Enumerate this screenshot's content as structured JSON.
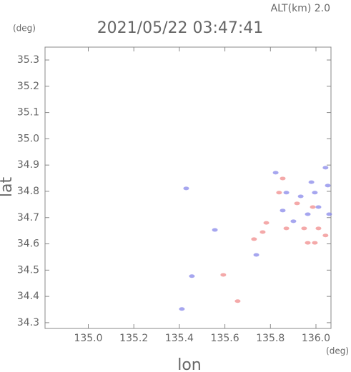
{
  "chart_data": {
    "type": "scatter",
    "title": "2021/05/22 03:47:41",
    "subtitle": "ALT(km) 2.0",
    "y_unit": "(deg)",
    "x_unit": "(deg)",
    "x_label": "lon",
    "y_label": "lat",
    "xlim": [
      134.81,
      136.066
    ],
    "ylim": [
      34.278,
      35.349
    ],
    "xticks": [
      {
        "value": 135.0,
        "label": "135.0"
      },
      135.2,
      135.4,
      135.6,
      135.8,
      {
        "value": 136.0,
        "label": "136.0"
      }
    ],
    "yticks": [
      34.3,
      34.4,
      34.5,
      34.6,
      34.7,
      34.8,
      34.9,
      {
        "value": 35.0,
        "label": "35.0"
      },
      35.1,
      35.2,
      35.3
    ],
    "series": [
      {
        "color": "#8080e8",
        "x": [
          135.43,
          135.823,
          135.87,
          135.933,
          135.995,
          136.042,
          136.052,
          136.011,
          135.964,
          135.901,
          135.854,
          135.738,
          135.455,
          135.411,
          135.556,
          136.058,
          135.98
        ],
        "y": [
          34.811,
          34.871,
          34.795,
          34.781,
          34.795,
          34.89,
          34.822,
          34.74,
          34.713,
          34.686,
          34.727,
          34.558,
          34.477,
          34.352,
          34.653,
          34.713,
          34.835
        ]
      },
      {
        "color": "#f08484",
        "x": [
          135.854,
          135.838,
          135.917,
          135.986,
          136.011,
          135.948,
          135.87,
          135.782,
          135.766,
          135.728,
          135.593,
          135.656,
          135.995,
          136.042,
          135.964
        ],
        "y": [
          34.849,
          34.795,
          34.754,
          34.74,
          34.659,
          34.659,
          34.659,
          34.68,
          34.645,
          34.618,
          34.482,
          34.382,
          34.604,
          34.632,
          34.604
        ]
      }
    ]
  }
}
